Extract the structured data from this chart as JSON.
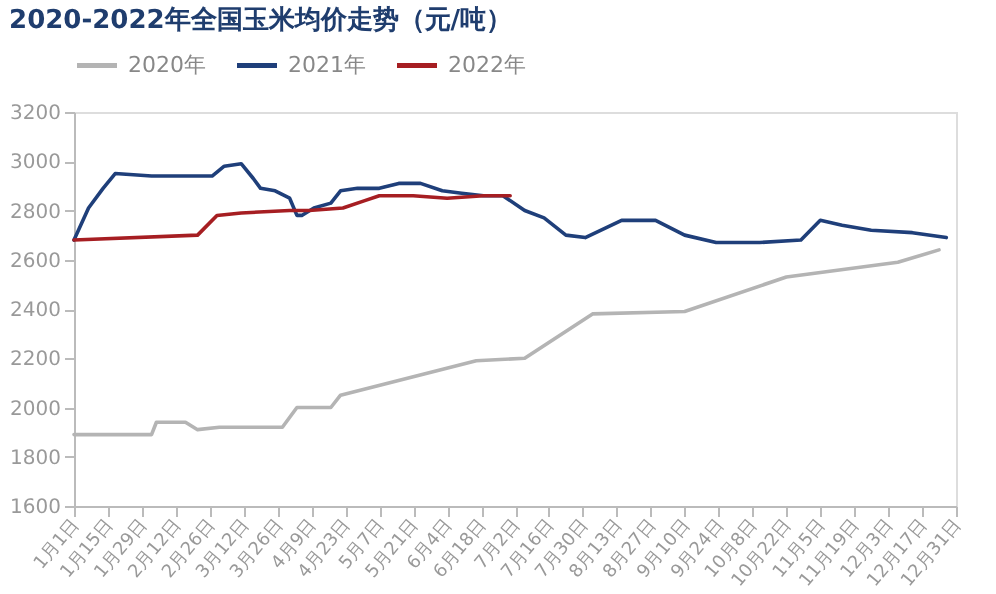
{
  "chart_data": {
    "type": "line",
    "title": "2020-2022年全国玉米均价走势（元/吨）",
    "xlim": [
      "--01-01",
      "--12-31"
    ],
    "xticks": [
      {
        "value": "--01-01",
        "label": "1月1日"
      },
      {
        "value": "--01-15",
        "label": "1月15日"
      },
      {
        "value": "--01-29",
        "label": "1月29日"
      },
      {
        "value": "--02-12",
        "label": "2月12日"
      },
      {
        "value": "--02-26",
        "label": "2月26日"
      },
      {
        "value": "--03-12",
        "label": "3月12日"
      },
      {
        "value": "--03-26",
        "label": "3月26日"
      },
      {
        "value": "--04-09",
        "label": "4月9日"
      },
      {
        "value": "--04-23",
        "label": "4月23日"
      },
      {
        "value": "--05-07",
        "label": "5月7日"
      },
      {
        "value": "--05-21",
        "label": "5月21日"
      },
      {
        "value": "--06-04",
        "label": "6月4日"
      },
      {
        "value": "--06-18",
        "label": "6月18日"
      },
      {
        "value": "--07-02",
        "label": "7月2日"
      },
      {
        "value": "--07-16",
        "label": "7月16日"
      },
      {
        "value": "--07-30",
        "label": "7月30日"
      },
      {
        "value": "--08-13",
        "label": "8月13日"
      },
      {
        "value": "--08-27",
        "label": "8月27日"
      },
      {
        "value": "--09-10",
        "label": "9月10日"
      },
      {
        "value": "--09-24",
        "label": "9月24日"
      },
      {
        "value": "--10-08",
        "label": "10月8日"
      },
      {
        "value": "--10-22",
        "label": "10月22日"
      },
      {
        "value": "--11-05",
        "label": "11月5日"
      },
      {
        "value": "--11-19",
        "label": "11月19日"
      },
      {
        "value": "--12-03",
        "label": "12月3日"
      },
      {
        "value": "--12-17",
        "label": "12月17日"
      },
      {
        "value": "--12-31",
        "label": "12月31日"
      }
    ],
    "ylim": [
      1600,
      3200
    ],
    "yticks": [
      1600,
      1800,
      2000,
      2200,
      2400,
      2600,
      2800,
      3000,
      3200
    ],
    "grid": false,
    "legend": "top",
    "series": [
      {
        "name": "2020年",
        "color": "#b4b4b4",
        "x": [
          "--01-01",
          "--02-02",
          "--02-04",
          "--02-16",
          "--02-21",
          "--03-02",
          "--03-16",
          "--03-28",
          "--04-03",
          "--04-17",
          "--04-21",
          "--06-16",
          "--07-06",
          "--08-03",
          "--09-10",
          "--10-22",
          "--12-07",
          "--12-24"
        ],
        "values": [
          1890,
          1890,
          1940,
          1940,
          1910,
          1920,
          1920,
          1920,
          2000,
          2000,
          2050,
          2190,
          2200,
          2380,
          2390,
          2530,
          2590,
          2640
        ]
      },
      {
        "name": "2021年",
        "color": "#1f3f7a",
        "x": [
          "--01-01",
          "--01-07",
          "--01-13",
          "--01-18",
          "--02-02",
          "--02-27",
          "--03-04",
          "--03-11",
          "--03-16",
          "--03-19",
          "--03-25",
          "--03-31",
          "--04-03",
          "--04-05",
          "--04-10",
          "--04-17",
          "--04-21",
          "--04-28",
          "--05-07",
          "--05-15",
          "--05-24",
          "--06-02",
          "--06-10",
          "--06-19",
          "--06-27",
          "--07-06",
          "--07-14",
          "--07-23",
          "--07-31",
          "--08-15",
          "--08-29",
          "--09-10",
          "--09-23",
          "--10-11",
          "--10-28",
          "--11-05",
          "--11-14",
          "--11-26",
          "--12-13",
          "--12-27"
        ],
        "values": [
          2680,
          2810,
          2890,
          2950,
          2940,
          2940,
          2980,
          2990,
          2930,
          2890,
          2880,
          2850,
          2780,
          2780,
          2810,
          2830,
          2880,
          2890,
          2890,
          2910,
          2910,
          2880,
          2870,
          2860,
          2860,
          2800,
          2770,
          2700,
          2690,
          2760,
          2760,
          2700,
          2670,
          2670,
          2680,
          2760,
          2740,
          2720,
          2710,
          2690
        ]
      },
      {
        "name": "2022年",
        "color": "#a61e22",
        "x": [
          "--01-01",
          "--02-21",
          "--03-01",
          "--03-11",
          "--03-31",
          "--04-08",
          "--04-22",
          "--05-01",
          "--05-07",
          "--05-21",
          "--06-04",
          "--06-19",
          "--06-27",
          "--06-30"
        ],
        "values": [
          2680,
          2700,
          2780,
          2790,
          2800,
          2800,
          2810,
          2840,
          2860,
          2860,
          2850,
          2860,
          2860,
          2860
        ]
      }
    ]
  }
}
